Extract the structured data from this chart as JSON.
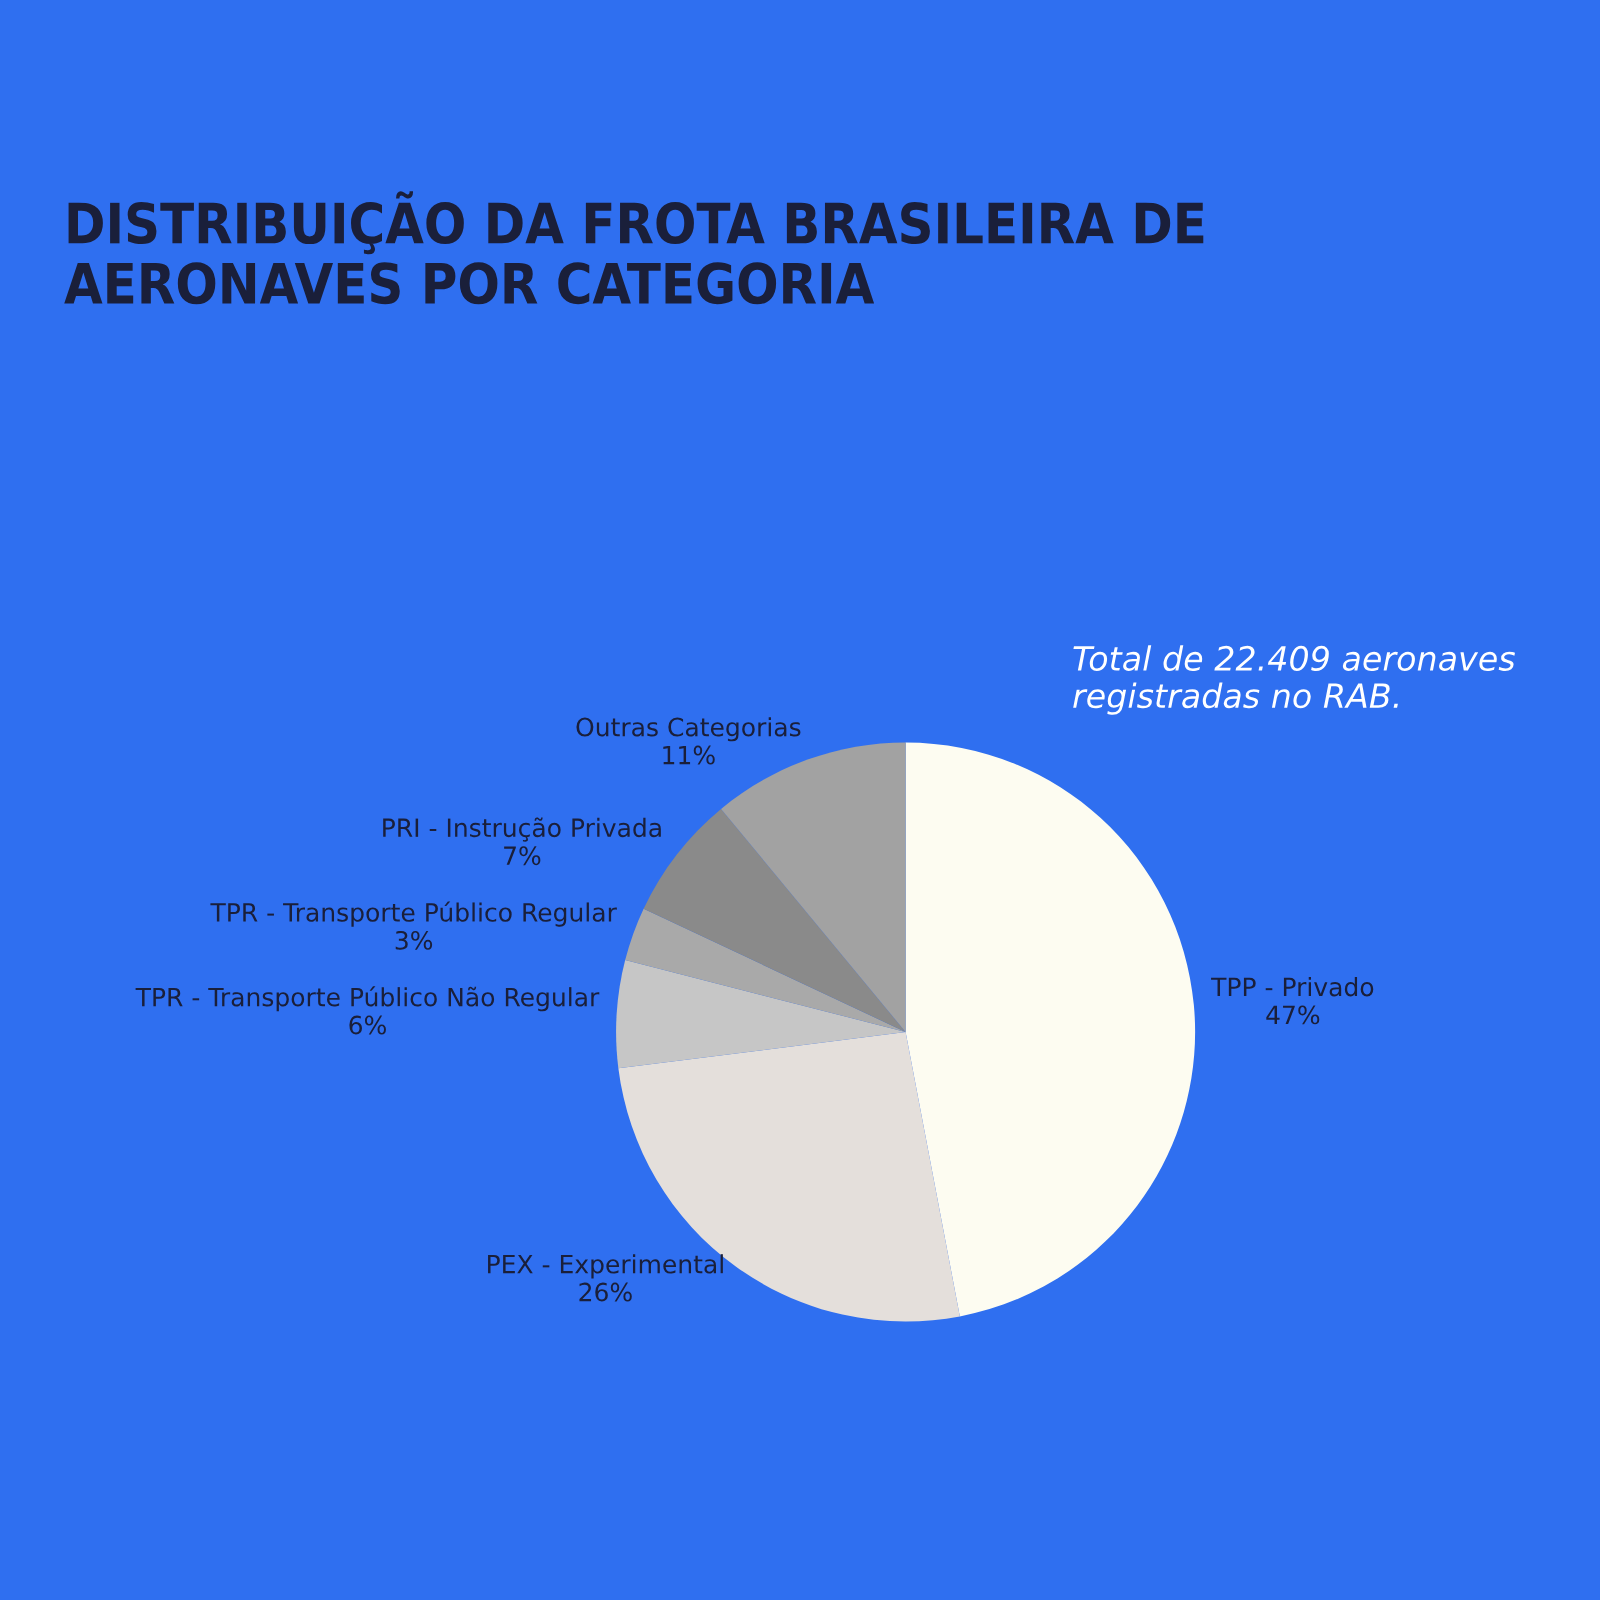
{
  "chart_data": {
    "type": "pie",
    "title": "DISTRIBUIÇÃO DA FROTA BRASILEIRA DE\nAERONAVES POR CATEGORIA",
    "categories": [
      "TPP - Privado",
      "PEX - Experimental",
      "TPR - Transporte Público Não Regular",
      "TPR - Transporte Público Regular",
      "PRI - Instrução Privada",
      "Outras Categorias"
    ],
    "values": [
      47,
      26,
      6,
      3,
      7,
      11
    ],
    "value_labels": [
      "47%",
      "26%",
      "6%",
      "3%",
      "7%",
      "11%"
    ],
    "colors": [
      "#fdfcf1",
      "#e4dfdb",
      "#c6c6c6",
      "#a9a9a9",
      "#8a8a8a",
      "#a2a2a2"
    ],
    "annotations": [
      "Total de 22.409 aeronaves\nregistradas no RAB."
    ],
    "legend": false
  }
}
